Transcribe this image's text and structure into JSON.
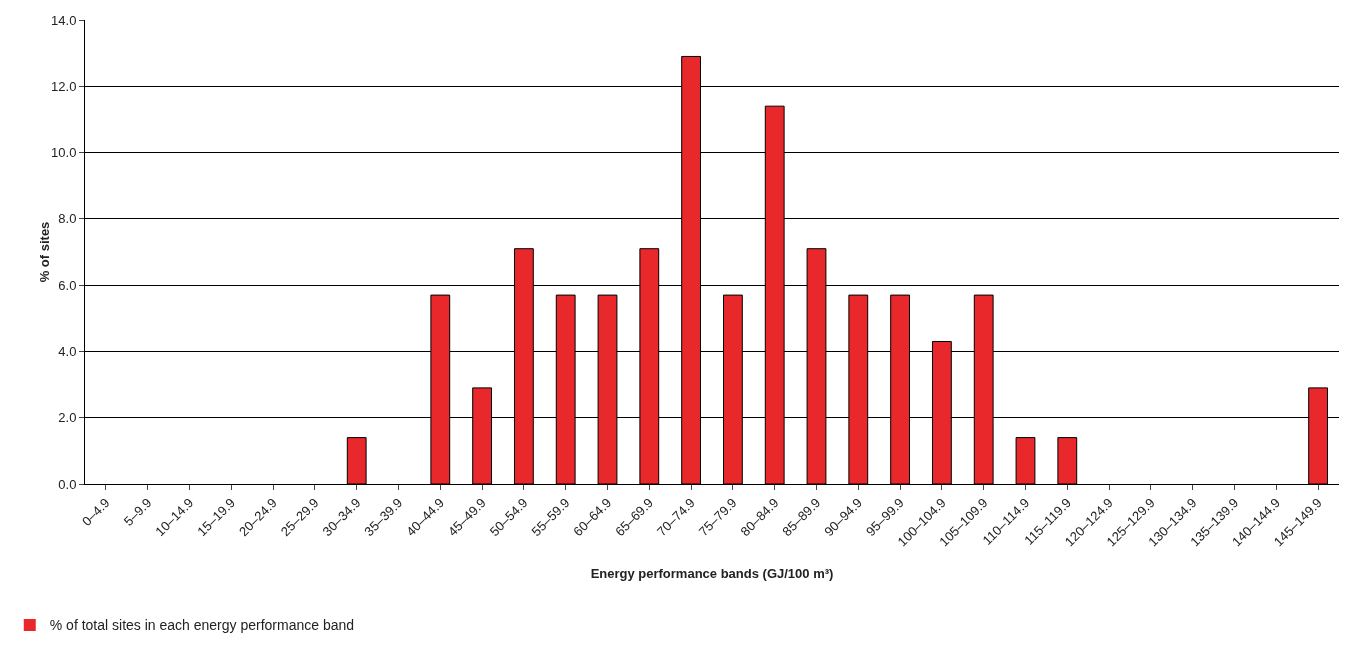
{
  "chart_data": {
    "type": "bar",
    "xlabel": "Energy performance bands (GJ/100 m³)",
    "ylabel": "% of sites",
    "categories": [
      "0–4.9",
      "5–9.9",
      "10–14.9",
      "15–19.9",
      "20–24.9",
      "25–29.9",
      "30–34.9",
      "35–39.9",
      "40–44.9",
      "45–49.9",
      "50–54.9",
      "55–59.9",
      "60–64.9",
      "65–69.9",
      "70–74.9",
      "75–79.9",
      "80–84.9",
      "85–89.9",
      "90–94.9",
      "95–99.9",
      "100–104.9",
      "105–109.9",
      "110–114.9",
      "115–119.9",
      "120–124.9",
      "125–129.9",
      "130–134.9",
      "135–139.9",
      "140–144.9",
      "145–149.9"
    ],
    "series": [
      {
        "name": "% of total sites in each energy performance band",
        "color": "#e8282b",
        "values": [
          0,
          0,
          0,
          0,
          0,
          0,
          1.4,
          0,
          5.7,
          2.9,
          7.1,
          5.7,
          5.7,
          7.1,
          12.9,
          5.7,
          11.4,
          7.1,
          5.7,
          5.7,
          4.3,
          5.7,
          1.4,
          1.4,
          0,
          0,
          0,
          0,
          0,
          2.9
        ]
      }
    ],
    "ylim": [
      0,
      14
    ],
    "yticks": [
      {
        "value": 0,
        "label": "0.0"
      },
      {
        "value": 2,
        "label": "2.0"
      },
      {
        "value": 4,
        "label": "4.0"
      },
      {
        "value": 6,
        "label": "6.0"
      },
      {
        "value": 8,
        "label": "8.0"
      },
      {
        "value": 10,
        "label": "10.0"
      },
      {
        "value": 12,
        "label": "12.0"
      },
      {
        "value": 14,
        "label": "14.0"
      }
    ],
    "grid": "y",
    "legend": "bottom left"
  }
}
